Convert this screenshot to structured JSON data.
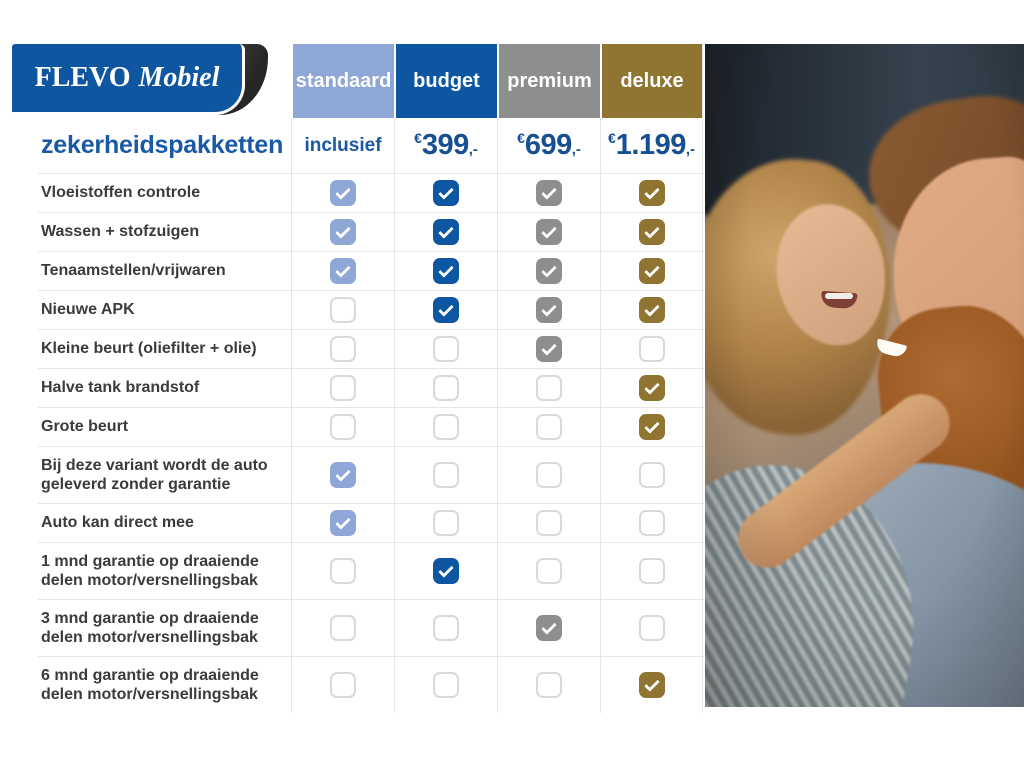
{
  "brand": {
    "name_primary": "FLEVO",
    "name_secondary": "Mobiel"
  },
  "page": {
    "title": "zekerheidspakketten"
  },
  "table": {
    "packages": [
      {
        "label": "standaard",
        "price_text": "inclusief",
        "color": "#8ea7d7"
      },
      {
        "label": "budget",
        "currency": "€",
        "amount": "399",
        "suffix": ",-",
        "color": "#0d57a2"
      },
      {
        "label": "premium",
        "currency": "€",
        "amount": "699",
        "suffix": ",-",
        "color": "#8e8e90"
      },
      {
        "label": "deluxe",
        "currency": "€",
        "amount": "1.199",
        "suffix": ",-",
        "color": "#8f7531"
      }
    ],
    "features": [
      {
        "label": "Vloeistoffen controle",
        "included": [
          true,
          true,
          true,
          true
        ]
      },
      {
        "label": "Wassen + stofzuigen",
        "included": [
          true,
          true,
          true,
          true
        ]
      },
      {
        "label": "Tenaamstellen/vrijwaren",
        "included": [
          true,
          true,
          true,
          true
        ]
      },
      {
        "label": "Nieuwe APK",
        "included": [
          false,
          true,
          true,
          true
        ]
      },
      {
        "label": "Kleine beurt (oliefilter + olie)",
        "included": [
          false,
          false,
          true,
          false
        ]
      },
      {
        "label": "Halve tank brandstof",
        "included": [
          false,
          false,
          false,
          true
        ]
      },
      {
        "label": "Grote beurt",
        "included": [
          false,
          false,
          false,
          true
        ]
      },
      {
        "label": "Bij deze variant wordt de auto geleverd zonder garantie",
        "included": [
          true,
          false,
          false,
          false
        ]
      },
      {
        "label": "Auto kan direct mee",
        "included": [
          true,
          false,
          false,
          false
        ]
      },
      {
        "label": "1 mnd garantie op draaiende delen motor/versnellingsbak",
        "included": [
          false,
          true,
          false,
          false
        ]
      },
      {
        "label": "3 mnd garantie op draaiende delen motor/versnellingsbak",
        "included": [
          false,
          false,
          true,
          false
        ]
      },
      {
        "label": "6 mnd garantie op draaiende delen motor/versnellingsbak",
        "included": [
          false,
          false,
          false,
          true
        ]
      }
    ]
  },
  "photo": {
    "alt": "Smiling couple inside a car; woman with wavy blonde hair reaching toward the beard of a smiling red-bearded man"
  },
  "colors": {
    "brand_blue": "#0e57a0",
    "accent_text_blue": "#1a59a6",
    "standaard": "#8ea7d7",
    "budget": "#0d57a2",
    "premium": "#8e8e90",
    "deluxe": "#8f7531"
  }
}
